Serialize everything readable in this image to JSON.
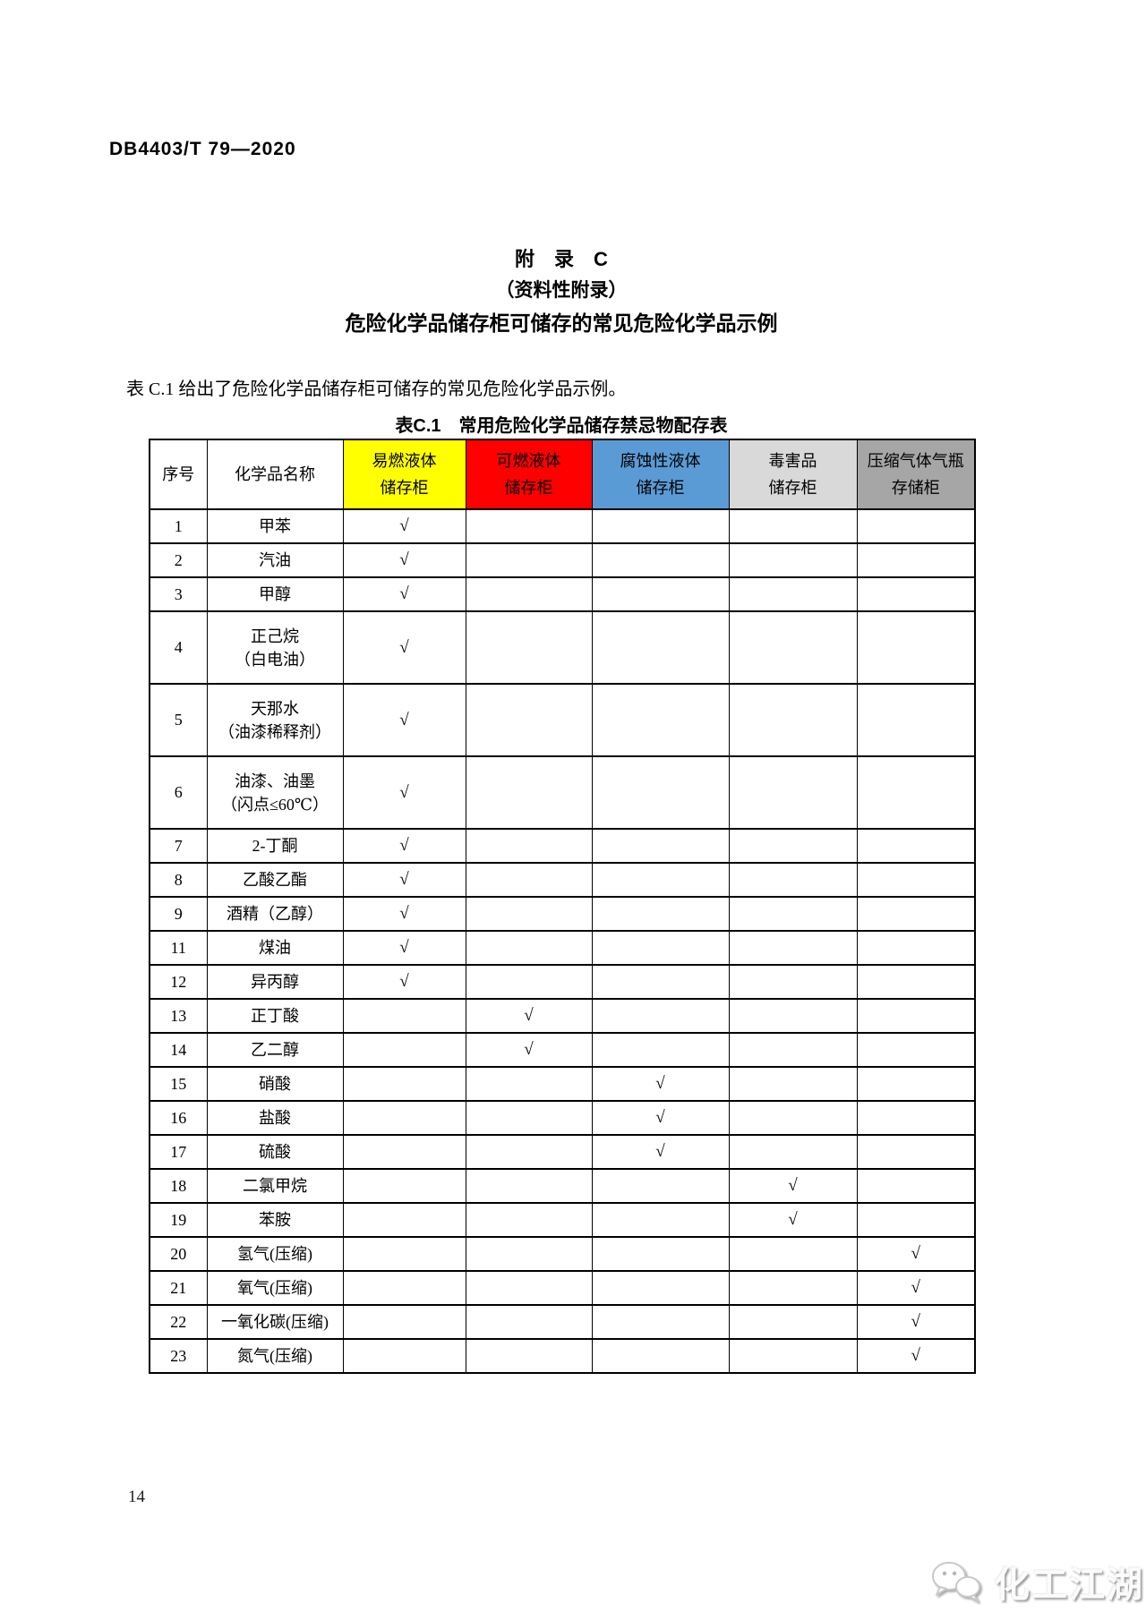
{
  "header": {
    "doc_number": "DB4403/T 79—2020"
  },
  "appendix": {
    "title": "附　录　C",
    "subtitle": "（资料性附录）",
    "heading": "危险化学品储存柜可储存的常见危险化学品示例",
    "intro": "表 C.1 给出了危险化学品储存柜可储存的常见危险化学品示例。"
  },
  "table": {
    "caption": "表C.1　常用危险化学品储存禁忌物配存表",
    "check_mark": "√",
    "columns": [
      {
        "lines": [
          "序号"
        ],
        "bg": "#FFFFFF"
      },
      {
        "lines": [
          "化学品名称"
        ],
        "bg": "#FFFFFF"
      },
      {
        "lines": [
          "易燃液体",
          "储存柜"
        ],
        "bg": "#FFFF00"
      },
      {
        "lines": [
          "可燃液体",
          "储存柜"
        ],
        "bg": "#FF0000"
      },
      {
        "lines": [
          "腐蚀性液体",
          "储存柜"
        ],
        "bg": "#5B9BD5"
      },
      {
        "lines": [
          "毒害品",
          "储存柜"
        ],
        "bg": "#D9D9D9"
      },
      {
        "lines": [
          "压缩气体气瓶",
          "存储柜"
        ],
        "bg": "#A6A6A6"
      }
    ],
    "rows": [
      {
        "no": "1",
        "name": [
          "甲苯"
        ],
        "checks": [
          true,
          false,
          false,
          false,
          false
        ]
      },
      {
        "no": "2",
        "name": [
          "汽油"
        ],
        "checks": [
          true,
          false,
          false,
          false,
          false
        ]
      },
      {
        "no": "3",
        "name": [
          "甲醇"
        ],
        "checks": [
          true,
          false,
          false,
          false,
          false
        ]
      },
      {
        "no": "4",
        "name": [
          "正己烷",
          "（白电油）"
        ],
        "checks": [
          true,
          false,
          false,
          false,
          false
        ]
      },
      {
        "no": "5",
        "name": [
          "天那水",
          "（油漆稀释剂）"
        ],
        "checks": [
          true,
          false,
          false,
          false,
          false
        ]
      },
      {
        "no": "6",
        "name": [
          "油漆、油墨",
          "（闪点≤60℃）"
        ],
        "checks": [
          true,
          false,
          false,
          false,
          false
        ]
      },
      {
        "no": "7",
        "name": [
          "2-丁酮"
        ],
        "checks": [
          true,
          false,
          false,
          false,
          false
        ]
      },
      {
        "no": "8",
        "name": [
          "乙酸乙酯"
        ],
        "checks": [
          true,
          false,
          false,
          false,
          false
        ]
      },
      {
        "no": "9",
        "name": [
          "酒精（乙醇）"
        ],
        "checks": [
          true,
          false,
          false,
          false,
          false
        ]
      },
      {
        "no": "11",
        "name": [
          "煤油"
        ],
        "checks": [
          true,
          false,
          false,
          false,
          false
        ]
      },
      {
        "no": "12",
        "name": [
          "异丙醇"
        ],
        "checks": [
          true,
          false,
          false,
          false,
          false
        ]
      },
      {
        "no": "13",
        "name": [
          "正丁酸"
        ],
        "checks": [
          false,
          true,
          false,
          false,
          false
        ]
      },
      {
        "no": "14",
        "name": [
          "乙二醇"
        ],
        "checks": [
          false,
          true,
          false,
          false,
          false
        ]
      },
      {
        "no": "15",
        "name": [
          "硝酸"
        ],
        "checks": [
          false,
          false,
          true,
          false,
          false
        ]
      },
      {
        "no": "16",
        "name": [
          "盐酸"
        ],
        "checks": [
          false,
          false,
          true,
          false,
          false
        ]
      },
      {
        "no": "17",
        "name": [
          "硫酸"
        ],
        "checks": [
          false,
          false,
          true,
          false,
          false
        ]
      },
      {
        "no": "18",
        "name": [
          "二氯甲烷"
        ],
        "checks": [
          false,
          false,
          false,
          true,
          false
        ]
      },
      {
        "no": "19",
        "name": [
          "苯胺"
        ],
        "checks": [
          false,
          false,
          false,
          true,
          false
        ]
      },
      {
        "no": "20",
        "name": [
          "氢气(压缩)"
        ],
        "checks": [
          false,
          false,
          false,
          false,
          true
        ]
      },
      {
        "no": "21",
        "name": [
          "氧气(压缩)"
        ],
        "checks": [
          false,
          false,
          false,
          false,
          true
        ]
      },
      {
        "no": "22",
        "name": [
          "一氧化碳(压缩)"
        ],
        "checks": [
          false,
          false,
          false,
          false,
          true
        ]
      },
      {
        "no": "23",
        "name": [
          "氮气(压缩)"
        ],
        "checks": [
          false,
          false,
          false,
          false,
          true
        ]
      }
    ]
  },
  "footer": {
    "page_number": "14",
    "watermark_text": "化工江湖",
    "watermark_icon": "wechat-bubbles-icon"
  }
}
